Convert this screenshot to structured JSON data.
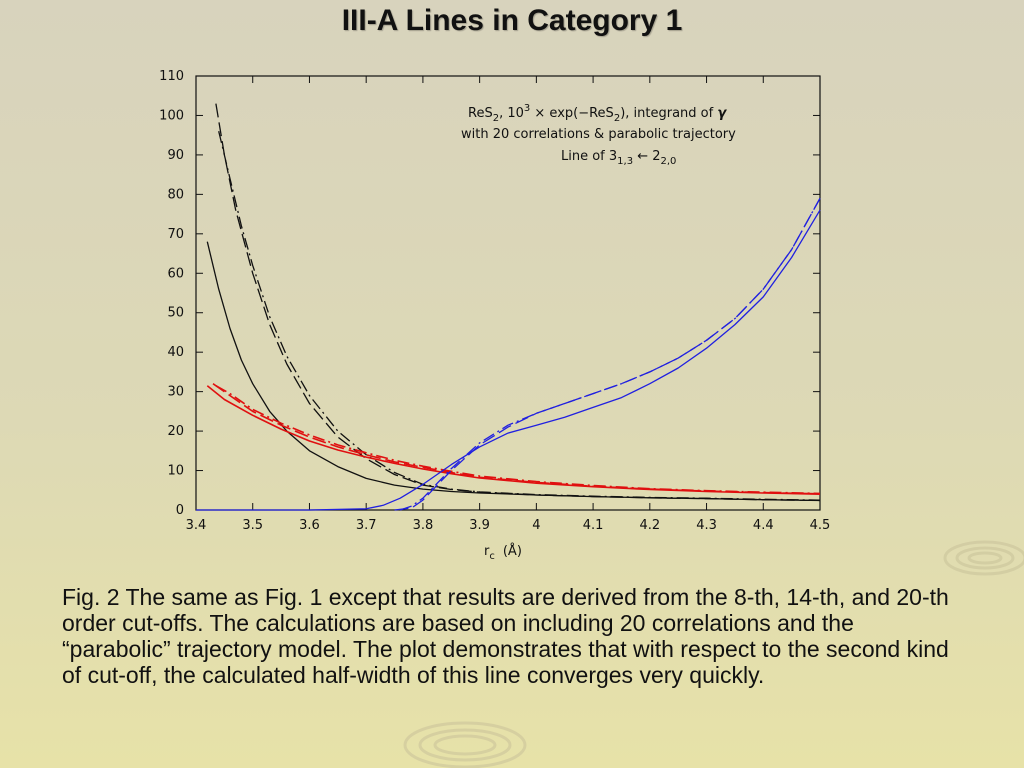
{
  "slide": {
    "title": "III-A Lines in Category 1",
    "caption": "Fig. 2 The same as Fig. 1 except that results are derived from the 8-th, 14-th, and 20-th order cut-offs. The calculations are based on including 20 correlations and the “parabolic” trajectory model. The plot demonstrates that with respect to the second kind of cut-off, the calculated half-width of this line converges very quickly."
  },
  "chart_data": {
    "type": "line",
    "xlim": [
      3.4,
      4.5
    ],
    "ylim": [
      0,
      110
    ],
    "x_ticks": [
      "3.4",
      "3.5",
      "3.6",
      "3.7",
      "3.8",
      "3.9",
      "4",
      "4.1",
      "4.2",
      "4.3",
      "4.4",
      "4.5"
    ],
    "y_ticks": [
      "0",
      "10",
      "20",
      "30",
      "40",
      "50",
      "60",
      "70",
      "80",
      "90",
      "100",
      "110"
    ],
    "xlabel_main": "r",
    "xlabel_sub": "c",
    "xlabel_unit": "(Å)",
    "annotation": {
      "line1_a": "ReS",
      "line1_sub1": "2",
      "line1_b": ", 10",
      "line1_sup": "3",
      "line1_c": " × exp(−ReS",
      "line1_sub2": "2",
      "line1_d": "), integrand of ",
      "line1_gamma": "γ",
      "line2": "with 20 correlations & parabolic trajectory",
      "line3_a": "Line of 3",
      "line3_sub1": "1,3",
      "line3_b": " ← 2",
      "line3_sub2": "2,0"
    },
    "series": [
      {
        "color": "#111111",
        "dash": "solid",
        "x": [
          3.42,
          3.44,
          3.46,
          3.48,
          3.5,
          3.53,
          3.56,
          3.6,
          3.65,
          3.7,
          3.75,
          3.8,
          3.85,
          3.9,
          4.0,
          4.1,
          4.2,
          4.3,
          4.4,
          4.5
        ],
        "y": [
          68,
          56,
          46,
          38,
          32,
          25,
          20,
          15,
          11,
          8,
          6.3,
          5.3,
          4.7,
          4.3,
          3.8,
          3.4,
          3.1,
          2.9,
          2.6,
          2.4
        ]
      },
      {
        "color": "#111111",
        "dash": "longdash",
        "x": [
          3.435,
          3.45,
          3.47,
          3.5,
          3.53,
          3.56,
          3.6,
          3.65,
          3.7,
          3.75,
          3.8,
          3.85,
          3.9,
          4.0,
          4.1,
          4.2,
          4.3,
          4.4,
          4.5
        ],
        "y": [
          103,
          90,
          76,
          60,
          47,
          37,
          27,
          18.5,
          13,
          9,
          6.3,
          5.2,
          4.5,
          3.8,
          3.4,
          3.1,
          2.9,
          2.6,
          2.4
        ]
      },
      {
        "color": "#111111",
        "dash": "dashdot",
        "x": [
          3.44,
          3.46,
          3.48,
          3.5,
          3.53,
          3.56,
          3.6,
          3.65,
          3.7,
          3.75,
          3.8,
          3.85,
          3.9,
          4.0,
          4.1,
          4.2,
          4.3,
          4.4,
          4.5
        ],
        "y": [
          96,
          84,
          72,
          62,
          49,
          39,
          29,
          20,
          14,
          9.5,
          6.5,
          5.3,
          4.6,
          3.9,
          3.5,
          3.2,
          3.0,
          2.7,
          2.5
        ]
      },
      {
        "color": "#e01010",
        "dash": "solid",
        "x": [
          3.42,
          3.45,
          3.5,
          3.55,
          3.6,
          3.65,
          3.7,
          3.75,
          3.8,
          3.85,
          3.9,
          4.0,
          4.1,
          4.2,
          4.3,
          4.4,
          4.5
        ],
        "y": [
          31.5,
          28,
          24,
          20.5,
          17.5,
          15.2,
          13.4,
          11.8,
          10.4,
          9.2,
          8.1,
          6.8,
          5.9,
          5.2,
          4.7,
          4.3,
          4.0
        ]
      },
      {
        "color": "#e01010",
        "dash": "longdash",
        "x": [
          3.43,
          3.46,
          3.5,
          3.55,
          3.6,
          3.65,
          3.7,
          3.75,
          3.8,
          3.85,
          3.9,
          4.0,
          4.1,
          4.2,
          4.3,
          4.4,
          4.5
        ],
        "y": [
          32,
          29,
          25,
          21.5,
          18.5,
          16,
          14,
          12.2,
          10.8,
          9.5,
          8.3,
          7.0,
          6.0,
          5.3,
          4.8,
          4.4,
          4.1
        ]
      },
      {
        "color": "#e01010",
        "dash": "dashdot",
        "x": [
          3.435,
          3.46,
          3.5,
          3.55,
          3.6,
          3.65,
          3.7,
          3.75,
          3.8,
          3.85,
          3.9,
          4.0,
          4.1,
          4.2,
          4.3,
          4.4,
          4.5
        ],
        "y": [
          31.5,
          29.5,
          25.5,
          22,
          19,
          16.5,
          14.5,
          12.6,
          11.1,
          9.8,
          8.6,
          7.2,
          6.2,
          5.4,
          4.9,
          4.5,
          4.2
        ]
      },
      {
        "color": "#2020e0",
        "dash": "solid",
        "x": [
          3.4,
          3.6,
          3.7,
          3.73,
          3.76,
          3.8,
          3.85,
          3.9,
          3.95,
          4.0,
          4.05,
          4.1,
          4.15,
          4.2,
          4.25,
          4.3,
          4.35,
          4.4,
          4.45,
          4.5
        ],
        "y": [
          0,
          0,
          0.3,
          1.2,
          3,
          6.5,
          11.5,
          16,
          19.5,
          21.5,
          23.5,
          26,
          28.5,
          32,
          36,
          41,
          47,
          54,
          64,
          76
        ]
      },
      {
        "color": "#2020e0",
        "dash": "longdash",
        "x": [
          3.75,
          3.78,
          3.8,
          3.85,
          3.9,
          3.95,
          4.0,
          4.05,
          4.1,
          4.15,
          4.2,
          4.25,
          4.3,
          4.35,
          4.4,
          4.45,
          4.5
        ],
        "y": [
          0,
          0.5,
          2.5,
          10,
          16.5,
          21,
          24.5,
          27,
          29.5,
          32,
          35,
          38.5,
          43,
          48.5,
          56,
          66,
          79
        ]
      },
      {
        "color": "#2020e0",
        "dash": "dashdot",
        "x": [
          3.76,
          3.78,
          3.8,
          3.85,
          3.9,
          3.95,
          4.0,
          4.05,
          4.1,
          4.15,
          4.2,
          4.25,
          4.3,
          4.35,
          4.4,
          4.45,
          4.5
        ],
        "y": [
          0,
          1,
          3,
          10.5,
          17,
          21.5,
          24.5,
          27,
          29.5,
          32,
          35,
          38.5,
          43,
          48.5,
          56,
          66,
          79
        ]
      }
    ]
  }
}
